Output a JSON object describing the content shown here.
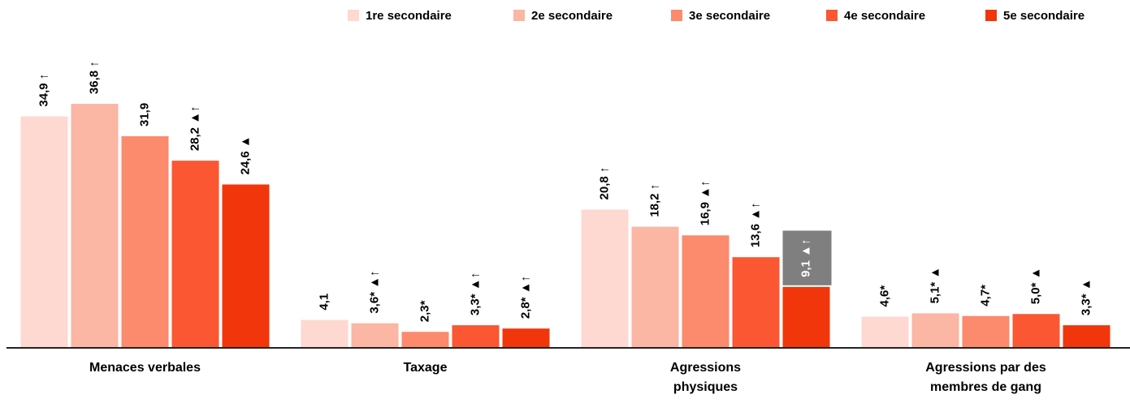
{
  "chart_data": {
    "type": "bar",
    "categories": [
      "Menaces verbales",
      "Taxage",
      "Agressions physiques",
      "Agressions par des membres de gang"
    ],
    "ylim": [
      0,
      40
    ],
    "legend": "top-right",
    "series": [
      {
        "name": "1re secondaire",
        "color": "#fdd9d1",
        "values": [
          34.9,
          4.1,
          20.8,
          4.6
        ],
        "value_labels": [
          "34,9 ↑",
          "4,1",
          "20,8 ↑",
          "4,6*"
        ]
      },
      {
        "name": "2e secondaire",
        "color": "#fbb6a4",
        "values": [
          36.8,
          3.6,
          18.2,
          5.1
        ],
        "value_labels": [
          "36,8 ↑",
          "3,6* ▲↑",
          "18,2 ↑",
          "5,1* ▲"
        ]
      },
      {
        "name": "3e secondaire",
        "color": "#fc8a6c",
        "values": [
          31.9,
          2.3,
          16.9,
          4.7
        ],
        "value_labels": [
          "31,9",
          "2,3*",
          "16,9 ▲↑",
          "4,7*"
        ]
      },
      {
        "name": "4e secondaire",
        "color": "#fb5733",
        "values": [
          28.2,
          3.3,
          13.6,
          5.0
        ],
        "value_labels": [
          "28,2 ▲↑",
          "3,3* ▲↑",
          "13,6 ▲↑",
          "5,0* ▲"
        ]
      },
      {
        "name": "5e secondaire",
        "color": "#f2360b",
        "values": [
          24.6,
          2.8,
          9.1,
          3.3
        ],
        "value_labels": [
          "24,6 ▲",
          "2,8* ▲↑",
          "9,1 ▲↑",
          "3,3* ▲"
        ],
        "value_label_boxes": [
          null,
          null,
          "#7f7f7f",
          null
        ]
      }
    ]
  }
}
